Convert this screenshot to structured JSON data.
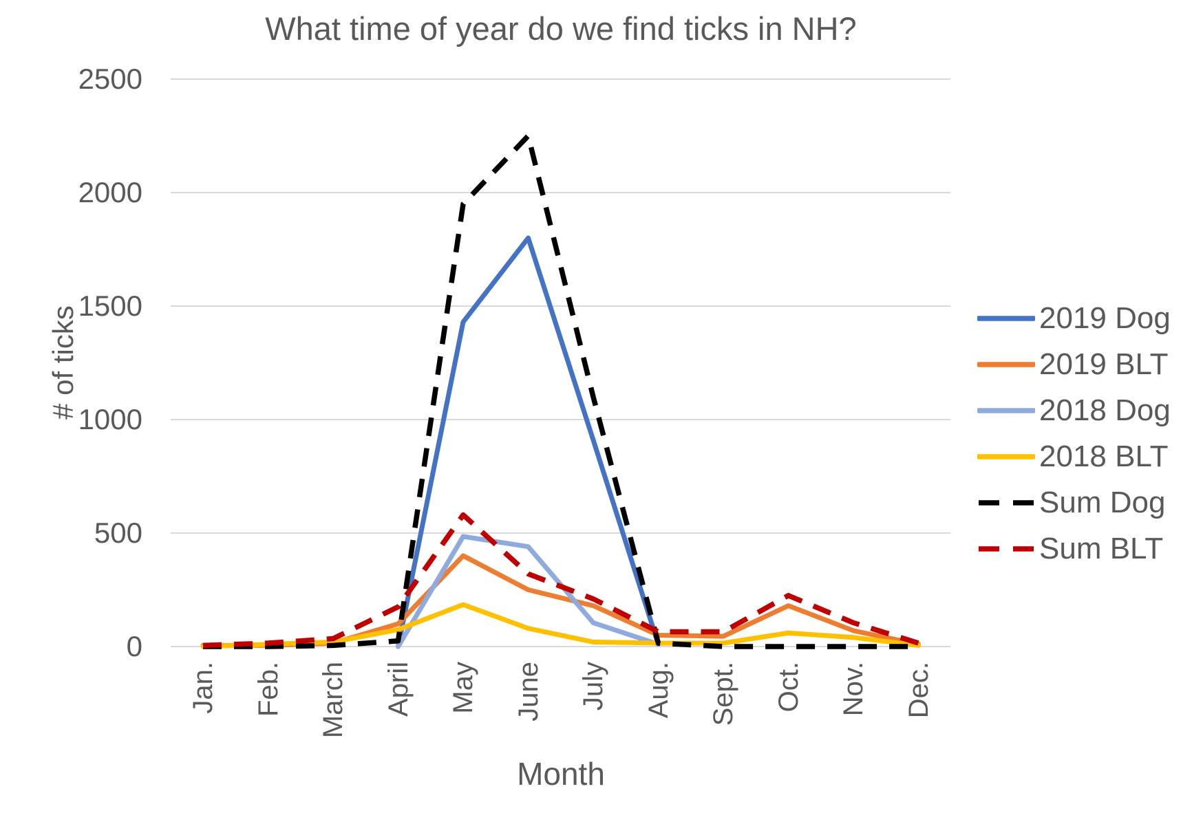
{
  "chart_data": {
    "type": "line",
    "title": "What time of year do we find ticks in NH?",
    "xlabel": "Month",
    "ylabel": "# of ticks",
    "categories": [
      "Jan.",
      "Feb.",
      "March",
      "April",
      "May",
      "June",
      "July",
      "Aug.",
      "Sept.",
      "Oct.",
      "Nov.",
      "Dec."
    ],
    "y_axis": {
      "min": 0,
      "max": 2500,
      "tick_step": 500,
      "ticks": [
        0,
        500,
        1000,
        1500,
        2000,
        2500
      ]
    },
    "grid": "horizontal-only",
    "legend_position": "right",
    "series": [
      {
        "name": "2019 Dog",
        "color": "#4472C4",
        "style": "solid",
        "values": [
          null,
          null,
          null,
          0,
          1430,
          1800,
          910,
          10,
          null,
          null,
          null,
          null
        ]
      },
      {
        "name": "2019 BLT",
        "color": "#ED7D31",
        "style": "solid",
        "values": [
          5,
          5,
          15,
          100,
          400,
          250,
          180,
          50,
          45,
          180,
          70,
          10
        ]
      },
      {
        "name": "2018 Dog",
        "color": "#8FAADC",
        "style": "solid",
        "values": [
          null,
          null,
          null,
          0,
          485,
          440,
          105,
          10,
          null,
          null,
          null,
          null
        ]
      },
      {
        "name": "2018 BLT",
        "color": "#FFC000",
        "style": "solid",
        "values": [
          0,
          10,
          20,
          75,
          185,
          80,
          20,
          15,
          15,
          60,
          40,
          5
        ]
      },
      {
        "name": "Sum Dog",
        "color": "#000000",
        "style": "dashed",
        "values": [
          0,
          0,
          5,
          25,
          1950,
          2250,
          1100,
          15,
          0,
          0,
          0,
          0
        ]
      },
      {
        "name": "Sum BLT",
        "color": "#C00000",
        "style": "dashed",
        "values": [
          5,
          15,
          35,
          175,
          580,
          320,
          210,
          65,
          65,
          225,
          105,
          15
        ]
      }
    ]
  },
  "colors": {
    "text": "#595959",
    "gridline": "#D9D9D9",
    "background": "#FFFFFF"
  }
}
